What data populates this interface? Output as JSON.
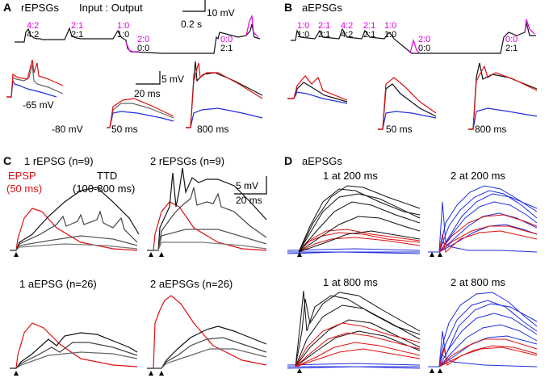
{
  "colors": {
    "black": "#111111",
    "gray": "#666666",
    "red": "#e01010",
    "blue": "#2030e0",
    "magenta": "#e000e0"
  },
  "panelA": {
    "letter": "A",
    "title": "rEPSGs",
    "subtitle": "Input : Output",
    "scale_mv": "10 mV",
    "scale_s": "0.2 s",
    "ratios": [
      {
        "top": "4:2",
        "bottom": "4:2"
      },
      {
        "top": "2:1",
        "bottom": "2:1"
      },
      {
        "top": "1:0",
        "bottom": "1:0"
      },
      {
        "top": "2:0",
        "bottom": "0:0"
      },
      {
        "top": "0:0",
        "bottom": "2:1"
      }
    ],
    "vm_label": "-65 mV",
    "vm_label2": "-80 mV",
    "scale2_mv": "5 mV",
    "scale2_ms": "20 ms",
    "delay1": "50 ms",
    "delay2": "800 ms"
  },
  "panelB": {
    "letter": "B",
    "title": "aEPSGs",
    "ratios": [
      {
        "top": "1:0",
        "bottom": "1:0"
      },
      {
        "top": "2:1",
        "bottom": "2:1"
      },
      {
        "top": "4:2",
        "bottom": "4:2"
      },
      {
        "top": "2:1",
        "bottom": "2:1"
      },
      {
        "top": "1:0",
        "bottom": "1:0"
      },
      {
        "top": "2:0",
        "bottom": "0:0"
      },
      {
        "top": "0:0",
        "bottom": "2:1"
      }
    ],
    "delay1": "50 ms",
    "delay2": "800 ms"
  },
  "panelC": {
    "letter": "C",
    "t1": "1 rEPSG (n=9)",
    "t2": "2 rEPSGs (n=9)",
    "t3": "1 aEPSG (n=26)",
    "t4": "2 aEPSGs (n=26)",
    "epsp": "EPSP",
    "epsp2": "(50 ms)",
    "ttd": "TTD",
    "ttd2": "(100-800 ms)",
    "scale_mv": "5 mV",
    "scale_ms": "20 ms"
  },
  "panelD": {
    "letter": "D",
    "title": "aEPSGs",
    "t1": "1 at 200 ms",
    "t2": "2 at 200 ms",
    "t3": "1 at 800 ms",
    "t4": "2 at 800 ms"
  }
}
